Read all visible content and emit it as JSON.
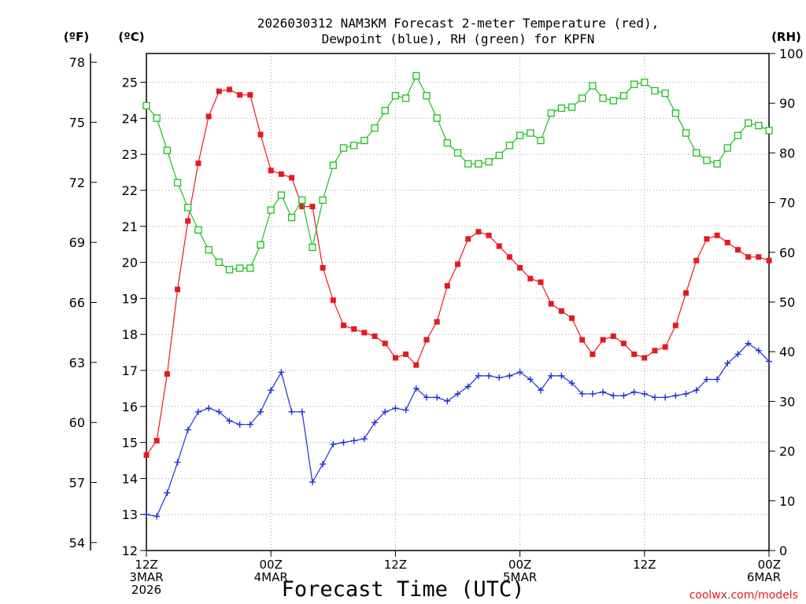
{
  "chart_data": {
    "type": "line",
    "title_line1": "2026030312 NAM3KM Forecast 2-meter Temperature (red),",
    "title_line2": "Dewpoint (blue), RH (green) for KPFN",
    "units": {
      "left_f": "(ºF)",
      "left_c": "(ºC)",
      "right_rh": "(RH)"
    },
    "xlabel": "Forecast Time (UTC)",
    "credit": "coolwx.com/models",
    "x_ticks": [
      {
        "hour": 0,
        "line1": "12Z",
        "line2": "3MAR",
        "line3": "2026"
      },
      {
        "hour": 12,
        "line1": "00Z",
        "line2": "4MAR",
        "line3": ""
      },
      {
        "hour": 24,
        "line1": "12Z",
        "line2": "",
        "line3": ""
      },
      {
        "hour": 36,
        "line1": "00Z",
        "line2": "5MAR",
        "line3": ""
      },
      {
        "hour": 48,
        "line1": "12Z",
        "line2": "",
        "line3": ""
      },
      {
        "hour": 60,
        "line1": "00Z",
        "line2": "6MAR",
        "line3": ""
      }
    ],
    "xlim": [
      0,
      60
    ],
    "celsius_axis": {
      "ylim": [
        12,
        25.8
      ],
      "ticks": [
        "12",
        "13",
        "14",
        "15",
        "16",
        "17",
        "18",
        "19",
        "20",
        "21",
        "22",
        "23",
        "24",
        "25"
      ]
    },
    "fahrenheit_axis": {
      "ticks": [
        "54",
        "57",
        "60",
        "63",
        "66",
        "69",
        "72",
        "75",
        "78"
      ]
    },
    "rh_axis": {
      "ylim": [
        0,
        100
      ],
      "ticks": [
        "0",
        "10",
        "20",
        "30",
        "40",
        "50",
        "60",
        "70",
        "80",
        "90",
        "100"
      ]
    },
    "x_hours": [
      0,
      1,
      2,
      3,
      4,
      5,
      6,
      7,
      8,
      9,
      10,
      11,
      12,
      13,
      14,
      15,
      16,
      17,
      18,
      19,
      20,
      21,
      22,
      23,
      24,
      25,
      26,
      27,
      28,
      29,
      30,
      31,
      32,
      33,
      34,
      35,
      36,
      37,
      38,
      39,
      40,
      41,
      42,
      43,
      44,
      45,
      46,
      47,
      48,
      49,
      50,
      51,
      52,
      53,
      54,
      55,
      56,
      57,
      58,
      59,
      60
    ],
    "series": [
      {
        "name": "2-meter Temperature",
        "unit": "C",
        "color": "#e8191e",
        "marker": "filled-square",
        "values": [
          14.65,
          15.05,
          16.9,
          19.25,
          21.15,
          22.75,
          24.05,
          24.75,
          24.8,
          24.65,
          24.65,
          23.55,
          22.55,
          22.45,
          22.35,
          21.55,
          21.55,
          19.85,
          18.95,
          18.25,
          18.15,
          18.05,
          17.95,
          17.75,
          17.35,
          17.45,
          17.15,
          17.85,
          18.35,
          19.35,
          19.95,
          20.65,
          20.85,
          20.75,
          20.45,
          20.15,
          19.85,
          19.55,
          19.45,
          18.85,
          18.65,
          18.45,
          17.85,
          17.45,
          17.85,
          17.95,
          17.75,
          17.45,
          17.35,
          17.55,
          17.65,
          18.25,
          19.15,
          20.05,
          20.65,
          20.75,
          20.55,
          20.35,
          20.15,
          20.15,
          20.05
        ]
      },
      {
        "name": "Dewpoint",
        "unit": "C",
        "color": "#1f2fd8",
        "marker": "plus",
        "values": [
          13.0,
          12.95,
          13.6,
          14.45,
          15.35,
          15.85,
          15.95,
          15.85,
          15.6,
          15.5,
          15.5,
          15.85,
          16.45,
          16.95,
          15.85,
          15.85,
          13.9,
          14.4,
          14.95,
          15.0,
          15.05,
          15.1,
          15.55,
          15.85,
          15.95,
          15.9,
          16.5,
          16.25,
          16.25,
          16.15,
          16.35,
          16.55,
          16.85,
          16.85,
          16.8,
          16.85,
          16.95,
          16.75,
          16.45,
          16.85,
          16.85,
          16.65,
          16.35,
          16.35,
          16.4,
          16.3,
          16.3,
          16.4,
          16.35,
          16.25,
          16.25,
          16.3,
          16.35,
          16.45,
          16.75,
          16.75,
          17.2,
          17.45,
          17.75,
          17.55,
          17.25
        ]
      },
      {
        "name": "RH",
        "unit": "%",
        "color": "#19c219",
        "marker": "open-square",
        "values": [
          89.5,
          87.0,
          80.5,
          74.0,
          69.0,
          64.5,
          60.5,
          58.0,
          56.5,
          56.8,
          56.8,
          61.5,
          68.5,
          71.5,
          67.0,
          70.5,
          61.0,
          70.5,
          77.5,
          81.0,
          81.5,
          82.5,
          85.0,
          88.5,
          91.5,
          91.0,
          95.5,
          91.5,
          87.0,
          82.0,
          80.0,
          77.8,
          77.8,
          78.2,
          79.5,
          81.5,
          83.5,
          84.0,
          82.5,
          88.0,
          89.0,
          89.2,
          91.0,
          93.5,
          91.0,
          90.5,
          91.5,
          93.8,
          94.2,
          92.5,
          92.0,
          88.0,
          84.0,
          80.0,
          78.5,
          77.8,
          81.0,
          83.5,
          86.0,
          85.5,
          84.5
        ]
      }
    ]
  }
}
